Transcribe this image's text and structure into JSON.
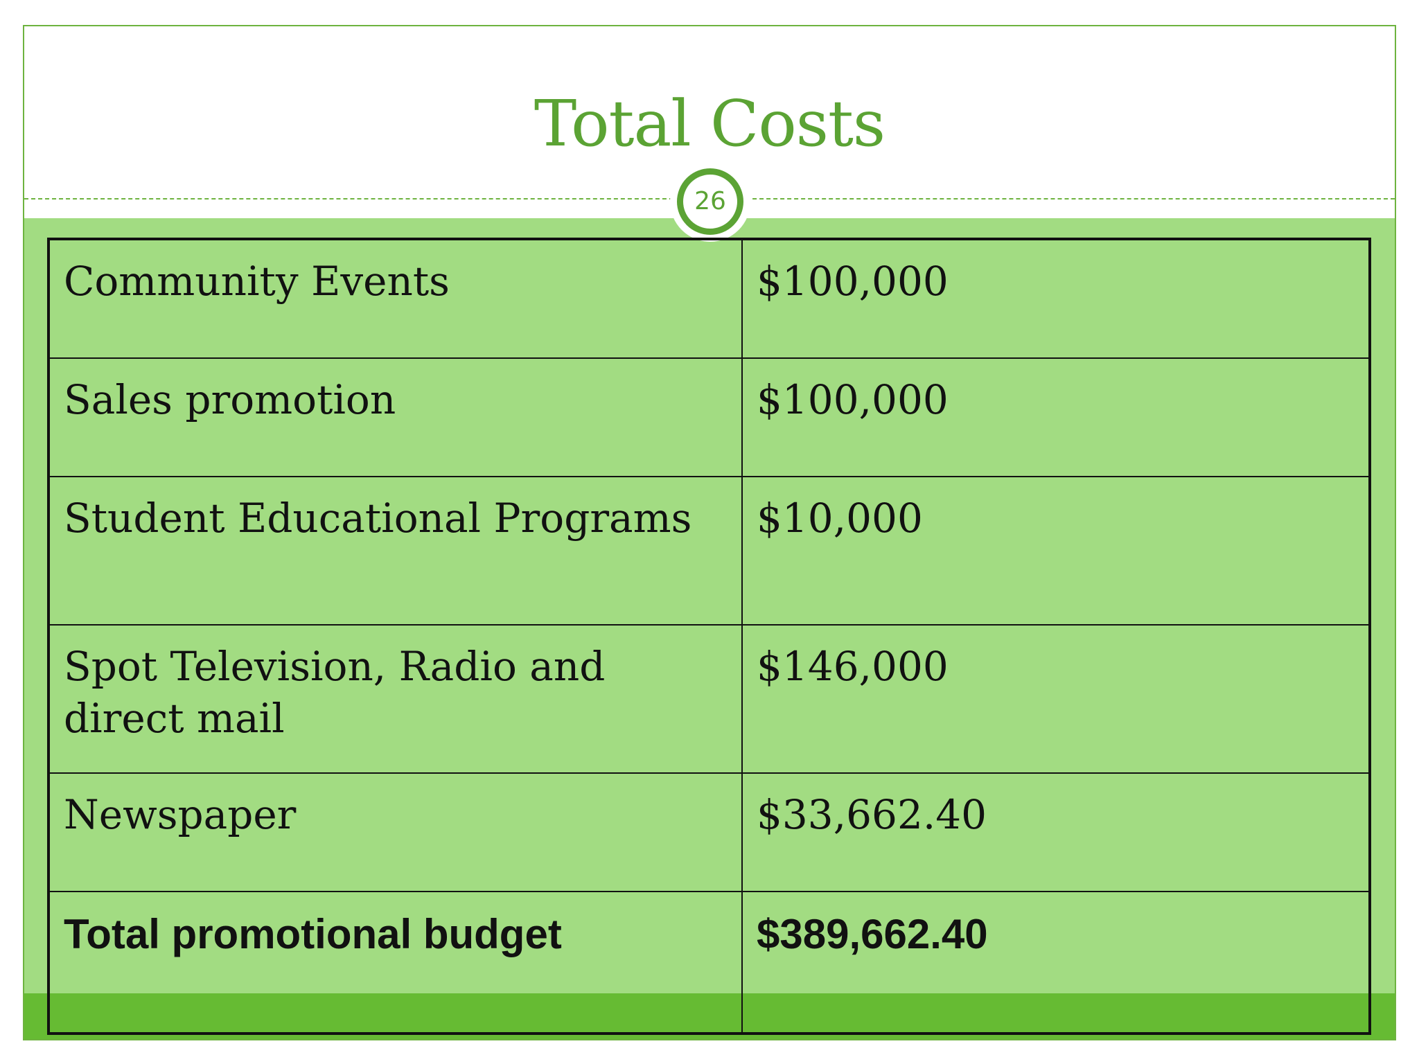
{
  "slide": {
    "title": "Total Costs",
    "number": "26"
  },
  "table": {
    "rows": [
      {
        "item": "Community Events",
        "cost": "$100,000"
      },
      {
        "item": "Sales promotion",
        "cost": "$100,000"
      },
      {
        "item": "Student Educational Programs",
        "cost": "$10,000"
      },
      {
        "item": "Spot Television, Radio and direct mail",
        "cost": "$146,000"
      },
      {
        "item": "Newspaper",
        "cost": "$33,662.40"
      }
    ],
    "total": {
      "item": "Total promotional budget",
      "cost": "$389,662.40"
    }
  },
  "colors": {
    "accent_green": "#5ba334",
    "band_green": "#a2dc82",
    "footer_green": "#66bb33"
  }
}
